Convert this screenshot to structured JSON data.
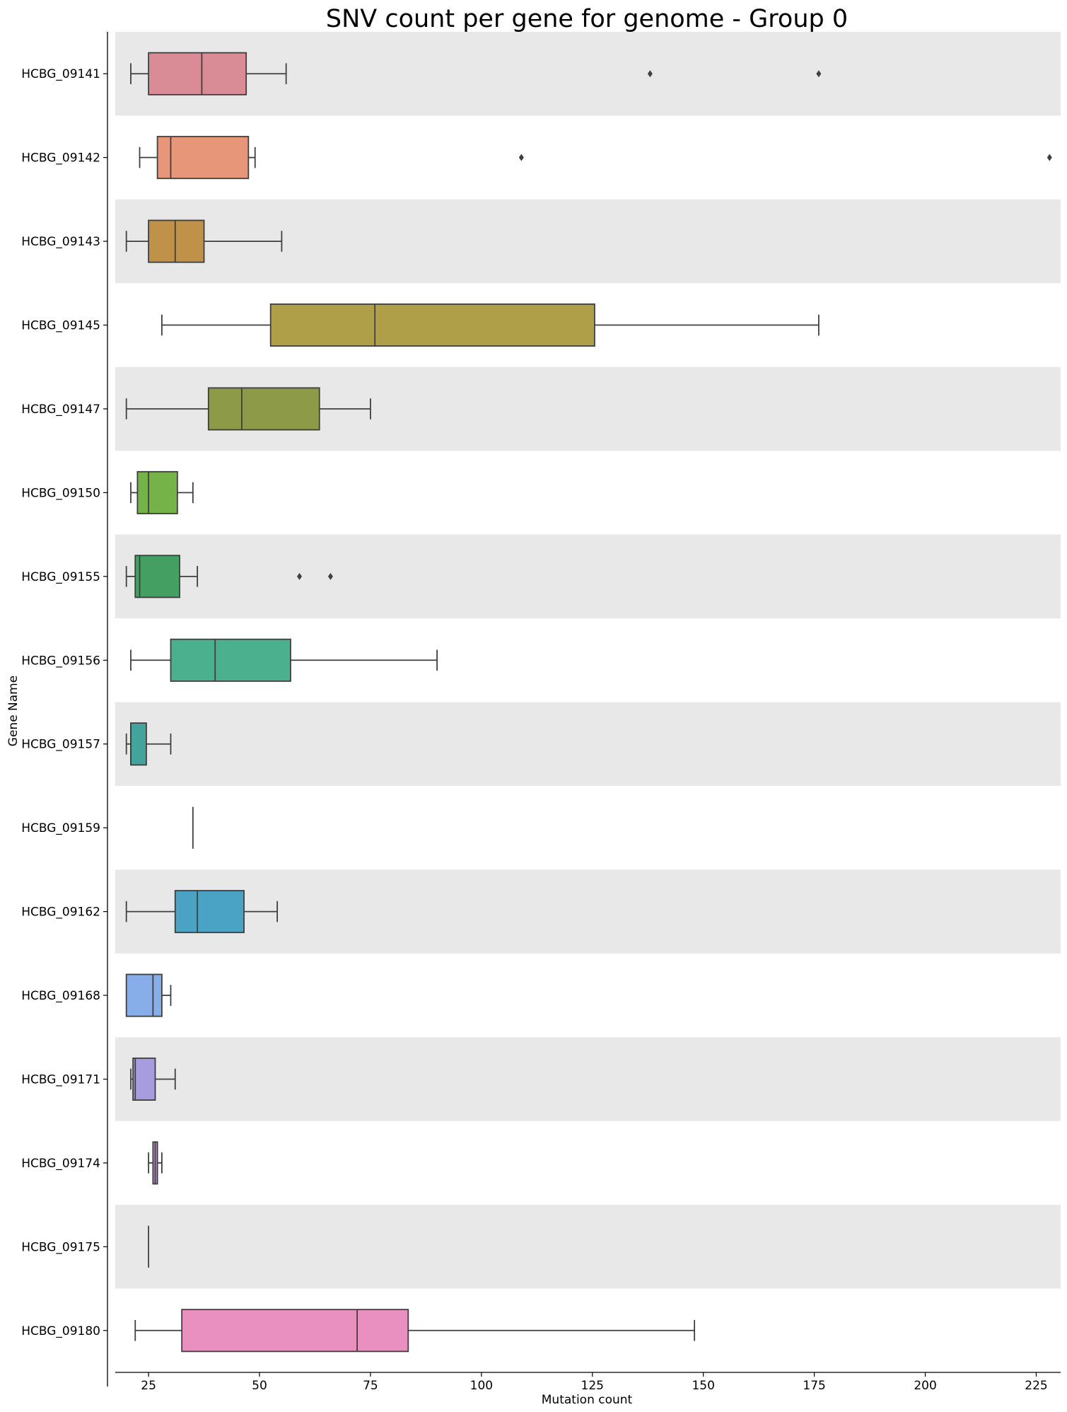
{
  "chart_data": {
    "type": "boxplot",
    "orientation": "horizontal",
    "title": "SNV count per gene for genome - Group 0",
    "xlabel": "Mutation count",
    "ylabel": "Gene Name",
    "xlim": [
      17.5,
      230.5
    ],
    "xticks": [
      25,
      50,
      75,
      100,
      125,
      150,
      175,
      200,
      225
    ],
    "grid": false,
    "alternating_row_shading": "#e8e8e8",
    "categories": [
      "HCBG_09141",
      "HCBG_09142",
      "HCBG_09143",
      "HCBG_09145",
      "HCBG_09147",
      "HCBG_09150",
      "HCBG_09155",
      "HCBG_09156",
      "HCBG_09157",
      "HCBG_09159",
      "HCBG_09162",
      "HCBG_09168",
      "HCBG_09171",
      "HCBG_09174",
      "HCBG_09175",
      "HCBG_09180"
    ],
    "boxes": [
      {
        "gene": "HCBG_09141",
        "whisker_low": 21,
        "q1": 25,
        "median": 37,
        "q3": 47,
        "whisker_high": 56,
        "outliers": [
          138,
          176
        ],
        "color": "#d98b96"
      },
      {
        "gene": "HCBG_09142",
        "whisker_low": 23,
        "q1": 27,
        "median": 30,
        "q3": 47.5,
        "whisker_high": 49,
        "outliers": [
          109,
          228
        ],
        "color": "#e8967a"
      },
      {
        "gene": "HCBG_09143",
        "whisker_low": 20,
        "q1": 25,
        "median": 31,
        "q3": 37.5,
        "whisker_high": 55,
        "outliers": [],
        "color": "#c09149"
      },
      {
        "gene": "HCBG_09145",
        "whisker_low": 28,
        "q1": 52.5,
        "median": 76,
        "q3": 125.5,
        "whisker_high": 176,
        "outliers": [],
        "color": "#b09f49"
      },
      {
        "gene": "HCBG_09147",
        "whisker_low": 20,
        "q1": 38.5,
        "median": 46,
        "q3": 63.5,
        "whisker_high": 75,
        "outliers": [],
        "color": "#8d9a47"
      },
      {
        "gene": "HCBG_09150",
        "whisker_low": 21,
        "q1": 22.5,
        "median": 25,
        "q3": 31.5,
        "whisker_high": 35,
        "outliers": [],
        "color": "#75b247"
      },
      {
        "gene": "HCBG_09155",
        "whisker_low": 20,
        "q1": 22,
        "median": 23,
        "q3": 32,
        "whisker_high": 36,
        "outliers": [
          59,
          66
        ],
        "color": "#44a062"
      },
      {
        "gene": "HCBG_09156",
        "whisker_low": 21,
        "q1": 30,
        "median": 40,
        "q3": 57,
        "whisker_high": 90,
        "outliers": [],
        "color": "#4ab08e"
      },
      {
        "gene": "HCBG_09157",
        "whisker_low": 20,
        "q1": 21,
        "median": 21,
        "q3": 24.5,
        "whisker_high": 30,
        "outliers": [],
        "color": "#44a49c"
      },
      {
        "gene": "HCBG_09159",
        "whisker_low": 35,
        "q1": 35,
        "median": 35,
        "q3": 35,
        "whisker_high": 35,
        "outliers": [],
        "color": "#45a7b0"
      },
      {
        "gene": "HCBG_09162",
        "whisker_low": 20,
        "q1": 31,
        "median": 36,
        "q3": 46.5,
        "whisker_high": 54,
        "outliers": [],
        "color": "#4aa3c4"
      },
      {
        "gene": "HCBG_09168",
        "whisker_low": 20,
        "q1": 20,
        "median": 26,
        "q3": 28,
        "whisker_high": 30,
        "outliers": [],
        "color": "#87aee8"
      },
      {
        "gene": "HCBG_09171",
        "whisker_low": 21,
        "q1": 21.5,
        "median": 22,
        "q3": 26.5,
        "whisker_high": 31,
        "outliers": [],
        "color": "#a89ce0"
      },
      {
        "gene": "HCBG_09174",
        "whisker_low": 25,
        "q1": 26,
        "median": 26.5,
        "q3": 27,
        "whisker_high": 28,
        "outliers": [],
        "color": "#c58fe0"
      },
      {
        "gene": "HCBG_09175",
        "whisker_low": 25,
        "q1": 25,
        "median": 25,
        "q3": 25,
        "whisker_high": 25,
        "outliers": [],
        "color": "#de8fd4"
      },
      {
        "gene": "HCBG_09180",
        "whisker_low": 22,
        "q1": 32.5,
        "median": 72,
        "q3": 83.5,
        "whisker_high": 148,
        "outliers": [],
        "color": "#ea90c0"
      }
    ]
  }
}
